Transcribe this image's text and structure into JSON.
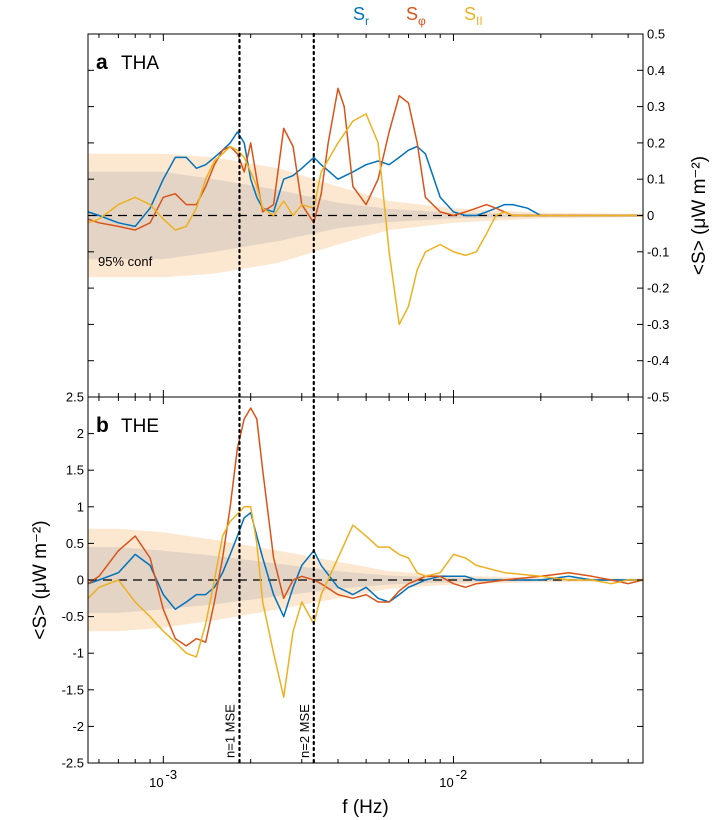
{
  "chart_data": [
    {
      "type": "line",
      "panel_letter": "a",
      "panel_name": "THA",
      "x_scale": "log",
      "xlim": [
        0.00055,
        0.045
      ],
      "ylim": [
        -0.5,
        0.5
      ],
      "y_axis_side": "right",
      "ylabel": "<S> (μW m⁻²)",
      "y_ticks": [
        {
          "v": 0.5,
          "label": "0.5"
        },
        {
          "v": 0.4,
          "label": "0.4"
        },
        {
          "v": 0.3,
          "label": "0.3"
        },
        {
          "v": 0.2,
          "label": "0.2"
        },
        {
          "v": 0.1,
          "label": "0.1"
        },
        {
          "v": 0,
          "label": "0"
        },
        {
          "v": -0.1,
          "label": "-0.1"
        },
        {
          "v": -0.2,
          "label": "-0.2"
        },
        {
          "v": -0.3,
          "label": "-0.3"
        },
        {
          "v": -0.4,
          "label": "-0.4"
        },
        {
          "v": -0.5,
          "label": "-0.5"
        }
      ],
      "annotation": "95% conf",
      "conf_band": {
        "x": [
          0.00055,
          0.0007,
          0.001,
          0.0015,
          0.0025,
          0.004,
          0.006,
          0.01,
          0.02,
          0.045
        ],
        "outer": [
          0.17,
          0.17,
          0.17,
          0.16,
          0.13,
          0.08,
          0.04,
          0.02,
          0.008,
          0.004
        ],
        "inner": [
          0.12,
          0.12,
          0.12,
          0.1,
          0.07,
          0.035,
          0.018,
          0.008,
          0.003,
          0.002
        ]
      },
      "series": [
        {
          "name": "S_r",
          "color": "#0072bd",
          "x": [
            0.00055,
            0.0006,
            0.0007,
            0.0008,
            0.0009,
            0.001,
            0.0011,
            0.0012,
            0.0013,
            0.0014,
            0.0015,
            0.0016,
            0.0017,
            0.0018,
            0.0019,
            0.002,
            0.0021,
            0.0022,
            0.0024,
            0.0026,
            0.0028,
            0.003,
            0.0033,
            0.0035,
            0.004,
            0.0045,
            0.005,
            0.0055,
            0.006,
            0.0065,
            0.007,
            0.0075,
            0.008,
            0.009,
            0.01,
            0.011,
            0.012,
            0.013,
            0.014,
            0.015,
            0.016,
            0.018,
            0.02,
            0.025,
            0.03,
            0.035,
            0.04,
            0.045
          ],
          "y": [
            0.01,
            0.0,
            -0.02,
            -0.03,
            0.02,
            0.1,
            0.16,
            0.16,
            0.13,
            0.14,
            0.16,
            0.18,
            0.2,
            0.23,
            0.2,
            0.1,
            0.05,
            0.02,
            0.01,
            0.1,
            0.11,
            0.13,
            0.16,
            0.14,
            0.1,
            0.12,
            0.14,
            0.15,
            0.14,
            0.16,
            0.18,
            0.19,
            0.17,
            0.05,
            0.01,
            0.0,
            0.0,
            0.01,
            0.02,
            0.03,
            0.03,
            0.02,
            0.0,
            0.0,
            0.0,
            0.0,
            0.0,
            0.0
          ]
        },
        {
          "name": "S_φ",
          "color": "#d95319",
          "x": [
            0.00055,
            0.0006,
            0.0007,
            0.0008,
            0.0009,
            0.001,
            0.0011,
            0.0012,
            0.0013,
            0.0014,
            0.0015,
            0.0016,
            0.0017,
            0.0018,
            0.0019,
            0.002,
            0.0021,
            0.0022,
            0.0024,
            0.0026,
            0.0028,
            0.003,
            0.0033,
            0.0035,
            0.0037,
            0.004,
            0.0042,
            0.0045,
            0.005,
            0.0055,
            0.006,
            0.0065,
            0.007,
            0.0075,
            0.008,
            0.009,
            0.01,
            0.011,
            0.012,
            0.013,
            0.014,
            0.015,
            0.016,
            0.018,
            0.02,
            0.025,
            0.03,
            0.035,
            0.04,
            0.045
          ],
          "y": [
            -0.01,
            -0.02,
            -0.03,
            -0.04,
            -0.02,
            0.05,
            0.06,
            0.03,
            0.03,
            0.08,
            0.14,
            0.18,
            0.19,
            0.17,
            0.12,
            0.2,
            0.1,
            0.01,
            0.03,
            0.24,
            0.19,
            0.03,
            -0.02,
            0.06,
            0.2,
            0.35,
            0.3,
            0.08,
            0.03,
            0.1,
            0.23,
            0.33,
            0.31,
            0.2,
            0.05,
            0.01,
            0.0,
            0.01,
            0.02,
            0.03,
            0.02,
            0.01,
            0.0,
            0.0,
            0.0,
            0.0,
            0.0,
            0.0,
            0.0,
            0.0
          ]
        },
        {
          "name": "S_∥",
          "color": "#edb120",
          "x": [
            0.00055,
            0.0006,
            0.0007,
            0.0008,
            0.0009,
            0.001,
            0.0011,
            0.0012,
            0.0013,
            0.0014,
            0.0015,
            0.0016,
            0.0017,
            0.0018,
            0.0019,
            0.002,
            0.0021,
            0.0022,
            0.0024,
            0.0026,
            0.0028,
            0.003,
            0.0033,
            0.0035,
            0.004,
            0.0045,
            0.005,
            0.0055,
            0.006,
            0.0065,
            0.007,
            0.0075,
            0.008,
            0.009,
            0.01,
            0.011,
            0.012,
            0.013,
            0.014,
            0.015,
            0.016,
            0.018,
            0.02,
            0.025,
            0.03,
            0.035,
            0.04,
            0.045
          ],
          "y": [
            -0.02,
            -0.01,
            0.03,
            0.05,
            0.03,
            -0.01,
            -0.04,
            -0.03,
            0.02,
            0.1,
            0.15,
            0.17,
            0.19,
            0.18,
            0.16,
            0.12,
            0.08,
            0.02,
            0.0,
            0.04,
            0.0,
            0.03,
            0.02,
            0.12,
            0.2,
            0.26,
            0.28,
            0.2,
            -0.1,
            -0.3,
            -0.25,
            -0.15,
            -0.1,
            -0.08,
            -0.1,
            -0.11,
            -0.1,
            -0.05,
            0.0,
            0.01,
            0.0,
            0.0,
            0.0,
            0.0,
            0.0,
            0.0,
            0.0,
            0.0
          ]
        }
      ]
    },
    {
      "type": "line",
      "panel_letter": "b",
      "panel_name": "THE",
      "x_scale": "log",
      "xlim": [
        0.00055,
        0.045
      ],
      "ylim": [
        -2.5,
        2.5
      ],
      "y_axis_side": "left",
      "xlabel": "f (Hz)",
      "ylabel": "<S> (μW m⁻²)",
      "x_ticks": [
        {
          "v": 0.001,
          "base": "10",
          "exp": "-3"
        },
        {
          "v": 0.01,
          "base": "10",
          "exp": "-2"
        }
      ],
      "y_ticks": [
        {
          "v": 2.5,
          "label": "2.5"
        },
        {
          "v": 2,
          "label": "2"
        },
        {
          "v": 1.5,
          "label": "1.5"
        },
        {
          "v": 1,
          "label": "1"
        },
        {
          "v": 0.5,
          "label": "0.5"
        },
        {
          "v": 0,
          "label": "0"
        },
        {
          "v": -0.5,
          "label": "-0.5"
        },
        {
          "v": -1,
          "label": "-1"
        },
        {
          "v": -1.5,
          "label": "-1.5"
        },
        {
          "v": -2,
          "label": "-2"
        },
        {
          "v": -2.5,
          "label": "-2.5"
        }
      ],
      "conf_band": {
        "x": [
          0.00055,
          0.0007,
          0.001,
          0.0015,
          0.0025,
          0.004,
          0.006,
          0.01,
          0.02,
          0.045
        ],
        "outer": [
          0.7,
          0.7,
          0.65,
          0.55,
          0.4,
          0.25,
          0.12,
          0.06,
          0.03,
          0.02
        ],
        "inner": [
          0.45,
          0.45,
          0.4,
          0.33,
          0.22,
          0.12,
          0.06,
          0.03,
          0.015,
          0.01
        ]
      },
      "vlines": [
        {
          "x": 0.00183,
          "label": "n=1 MSE"
        },
        {
          "x": 0.0033,
          "label": "n=2 MSE"
        }
      ],
      "series": [
        {
          "name": "S_r",
          "color": "#0072bd",
          "x": [
            0.00055,
            0.0006,
            0.0007,
            0.0008,
            0.0009,
            0.001,
            0.0011,
            0.0012,
            0.0013,
            0.0014,
            0.0015,
            0.0016,
            0.0017,
            0.0018,
            0.0019,
            0.002,
            0.0021,
            0.0022,
            0.0024,
            0.0026,
            0.0028,
            0.003,
            0.0033,
            0.0035,
            0.004,
            0.0045,
            0.005,
            0.0055,
            0.006,
            0.0065,
            0.007,
            0.0075,
            0.008,
            0.009,
            0.01,
            0.011,
            0.012,
            0.015,
            0.02,
            0.025,
            0.03,
            0.035,
            0.04,
            0.045
          ],
          "y": [
            -0.05,
            0.0,
            0.1,
            0.35,
            0.2,
            -0.2,
            -0.4,
            -0.3,
            -0.2,
            -0.2,
            -0.1,
            0.1,
            0.35,
            0.6,
            0.85,
            0.92,
            0.6,
            0.3,
            -0.2,
            -0.5,
            -0.1,
            0.2,
            0.4,
            0.2,
            -0.1,
            -0.2,
            -0.1,
            -0.25,
            -0.3,
            -0.2,
            -0.1,
            -0.05,
            0.0,
            0.05,
            0.05,
            0.05,
            0.0,
            0.0,
            0.0,
            0.05,
            0.0,
            0.0,
            0.0,
            0.0
          ]
        },
        {
          "name": "S_φ",
          "color": "#d95319",
          "x": [
            0.00055,
            0.0006,
            0.0007,
            0.0008,
            0.0009,
            0.001,
            0.0011,
            0.0012,
            0.0013,
            0.0014,
            0.0015,
            0.0016,
            0.0017,
            0.0018,
            0.0019,
            0.002,
            0.0021,
            0.0022,
            0.0024,
            0.0026,
            0.0028,
            0.003,
            0.0033,
            0.0035,
            0.004,
            0.0045,
            0.005,
            0.0055,
            0.006,
            0.0065,
            0.007,
            0.0075,
            0.008,
            0.009,
            0.01,
            0.011,
            0.012,
            0.015,
            0.02,
            0.025,
            0.03,
            0.035,
            0.04,
            0.045
          ],
          "y": [
            -0.05,
            0.05,
            0.4,
            0.6,
            0.3,
            -0.4,
            -0.8,
            -0.9,
            -0.8,
            -0.85,
            -0.3,
            0.3,
            1.0,
            1.8,
            2.2,
            2.35,
            2.2,
            1.5,
            0.3,
            -0.25,
            0.0,
            0.05,
            0.0,
            -0.05,
            -0.2,
            -0.25,
            -0.2,
            -0.3,
            -0.3,
            -0.15,
            -0.05,
            0.0,
            0.05,
            0.05,
            -0.05,
            -0.1,
            -0.05,
            0.0,
            0.05,
            0.1,
            0.05,
            0.0,
            -0.05,
            0.0
          ]
        },
        {
          "name": "S_∥",
          "color": "#edb120",
          "x": [
            0.00055,
            0.0006,
            0.0007,
            0.0008,
            0.0009,
            0.001,
            0.0011,
            0.0012,
            0.0013,
            0.0014,
            0.0015,
            0.0016,
            0.0017,
            0.0018,
            0.0019,
            0.002,
            0.0021,
            0.0022,
            0.0024,
            0.0026,
            0.0028,
            0.003,
            0.0033,
            0.0035,
            0.004,
            0.0045,
            0.005,
            0.0055,
            0.006,
            0.0065,
            0.007,
            0.0075,
            0.008,
            0.009,
            0.01,
            0.011,
            0.012,
            0.015,
            0.02,
            0.025,
            0.03,
            0.035,
            0.04,
            0.045
          ],
          "y": [
            -0.25,
            -0.1,
            0.0,
            -0.3,
            -0.5,
            -0.7,
            -0.85,
            -1.0,
            -1.05,
            -0.6,
            0.0,
            0.6,
            0.8,
            0.9,
            1.0,
            1.0,
            0.5,
            -0.3,
            -1.0,
            -1.6,
            -0.7,
            -0.3,
            -0.6,
            -0.2,
            0.3,
            0.75,
            0.6,
            0.45,
            0.45,
            0.35,
            0.3,
            0.1,
            0.05,
            0.1,
            0.35,
            0.3,
            0.2,
            0.1,
            0.05,
            0.0,
            0.0,
            -0.05,
            0.0,
            0.0
          ]
        }
      ]
    }
  ],
  "legend": [
    {
      "base": "S",
      "sub": "r",
      "color": "#0072bd"
    },
    {
      "base": "S",
      "sub": "φ",
      "color": "#d95319"
    },
    {
      "base": "S",
      "sub": "II",
      "color": "#edb120"
    }
  ]
}
